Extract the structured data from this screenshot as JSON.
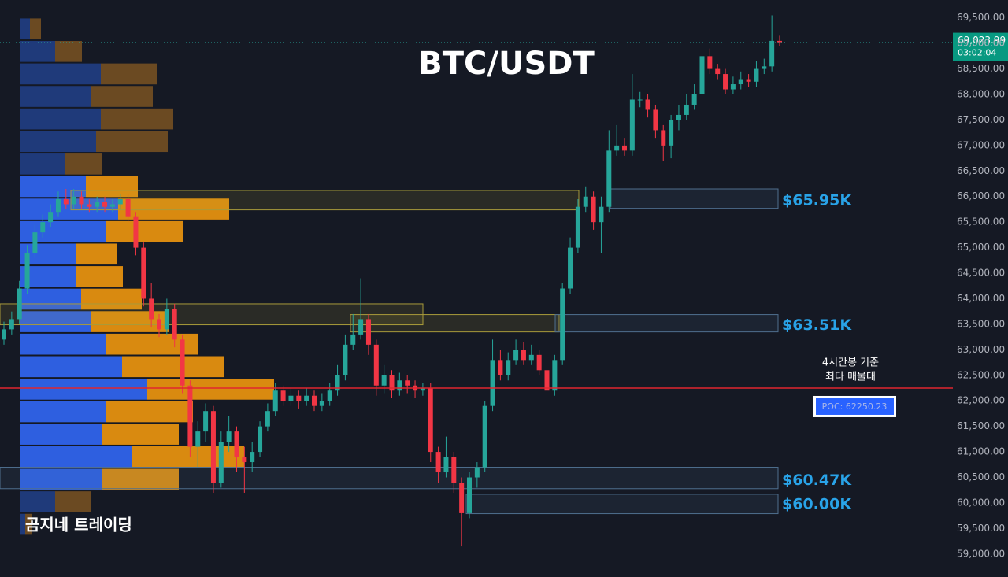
{
  "chart_data": {
    "type": "candlestick",
    "title": "BTC/USDT",
    "watermark": "곰지네 트레이딩",
    "up_color": "#26a69a",
    "down_color": "#f23645",
    "open": [
      63200,
      63400,
      63600,
      64200,
      64900,
      65300,
      65500,
      65700,
      65950,
      65850,
      66000,
      65850,
      65800,
      65900,
      65800,
      65850,
      65950,
      65600,
      65000,
      64000,
      63600,
      63400,
      63800,
      63200,
      62300,
      61100,
      61400,
      61800,
      60400,
      61200,
      61400,
      60900,
      60800,
      61000,
      61500,
      61800,
      62200,
      62000,
      62100,
      62000,
      62100,
      61900,
      62000,
      62200,
      62500,
      63100,
      63300,
      63600,
      63100,
      62300,
      62500,
      62200,
      62400,
      62300,
      62200,
      62250,
      61000,
      60600,
      60900,
      60400,
      59800,
      60500,
      60700,
      61900,
      62800,
      62500,
      62800,
      63000,
      62800,
      62900,
      62600,
      62200,
      62800,
      64200,
      65000,
      65800,
      66000,
      65500,
      65800,
      66900,
      67000,
      66900,
      67900,
      67900,
      67700,
      67300,
      67000,
      67500,
      67600,
      67800,
      68000,
      68750,
      68500,
      68400,
      68100,
      68200,
      68300,
      68250,
      68500,
      68550,
      69050
    ],
    "high": [
      63550,
      63750,
      64350,
      65050,
      65450,
      65650,
      65850,
      66100,
      66150,
      66150,
      66100,
      65950,
      66000,
      66000,
      65950,
      66050,
      66050,
      65700,
      65100,
      64300,
      63700,
      64000,
      63900,
      63300,
      62400,
      61600,
      61950,
      61900,
      61400,
      61700,
      61500,
      61100,
      61200,
      61600,
      61950,
      62350,
      62300,
      62250,
      62200,
      62250,
      62200,
      62150,
      62350,
      62700,
      63300,
      63700,
      64400,
      63700,
      63200,
      62700,
      62600,
      62550,
      62500,
      62400,
      62350,
      62350,
      61100,
      61300,
      61000,
      60500,
      60600,
      60800,
      62000,
      63200,
      63000,
      62950,
      63200,
      63150,
      63100,
      63000,
      62700,
      62900,
      64300,
      65200,
      65950,
      66200,
      66100,
      66000,
      67300,
      67400,
      67150,
      68400,
      68050,
      68000,
      67800,
      67400,
      67600,
      67800,
      68000,
      68200,
      68950,
      68900,
      68600,
      68500,
      68350,
      68450,
      68400,
      68650,
      68700,
      69550,
      69150
    ],
    "low": [
      63100,
      63300,
      63500,
      64100,
      64800,
      65200,
      65400,
      65600,
      65750,
      65750,
      65750,
      65700,
      65700,
      65700,
      65700,
      65750,
      65500,
      64850,
      63850,
      63450,
      63250,
      63300,
      63050,
      62150,
      60900,
      60700,
      61200,
      60200,
      60300,
      61000,
      60600,
      60200,
      60600,
      60900,
      61400,
      61700,
      61900,
      61900,
      61850,
      61900,
      61800,
      61800,
      61900,
      62100,
      62400,
      63000,
      63200,
      62900,
      62100,
      62150,
      62050,
      62100,
      62150,
      62050,
      62100,
      60800,
      60400,
      60500,
      60200,
      59150,
      59700,
      60300,
      60600,
      61800,
      62400,
      62400,
      62700,
      62700,
      62700,
      62500,
      62100,
      62100,
      62700,
      64100,
      64900,
      65700,
      65350,
      64900,
      65700,
      66800,
      66800,
      66800,
      67750,
      67550,
      67150,
      66700,
      66750,
      67300,
      67500,
      67700,
      67900,
      68400,
      68300,
      68000,
      68000,
      68100,
      68150,
      68150,
      68400,
      68450,
      68950
    ],
    "close": [
      63400,
      63600,
      64200,
      64900,
      65300,
      65500,
      65700,
      65950,
      65850,
      66000,
      65850,
      65800,
      65900,
      65800,
      65850,
      65950,
      65600,
      65000,
      64000,
      63600,
      63400,
      63800,
      63200,
      62300,
      61100,
      61400,
      61800,
      60400,
      61200,
      61400,
      60900,
      60800,
      61000,
      61500,
      61800,
      62200,
      62000,
      62100,
      62000,
      62100,
      61900,
      62000,
      62200,
      62500,
      63100,
      63300,
      63600,
      63100,
      62300,
      62500,
      62200,
      62400,
      62300,
      62200,
      62250,
      61000,
      60600,
      60900,
      60400,
      59800,
      60500,
      60700,
      61900,
      62800,
      62500,
      62800,
      63000,
      62800,
      62900,
      62600,
      62200,
      62800,
      64200,
      65000,
      65800,
      66000,
      65500,
      65800,
      66900,
      67000,
      66900,
      67900,
      67900,
      67700,
      67300,
      67000,
      67500,
      67600,
      67800,
      68000,
      68750,
      68500,
      68400,
      68100,
      68200,
      68300,
      68250,
      68500,
      68550,
      69050,
      69023.99
    ],
    "ylim": [
      58550,
      69850
    ],
    "yticks": [
      {
        "value": 59000,
        "label": "59,000.00"
      },
      {
        "value": 59500,
        "label": "59,500.00"
      },
      {
        "value": 60000,
        "label": "60,000.00"
      },
      {
        "value": 60500,
        "label": "60,500.00"
      },
      {
        "value": 61000,
        "label": "61,000.00"
      },
      {
        "value": 61500,
        "label": "61,500.00"
      },
      {
        "value": 62000,
        "label": "62,000.00"
      },
      {
        "value": 62500,
        "label": "62,500.00"
      },
      {
        "value": 63000,
        "label": "63,000.00"
      },
      {
        "value": 63500,
        "label": "63,500.00"
      },
      {
        "value": 64000,
        "label": "64,000.00"
      },
      {
        "value": 64500,
        "label": "64,500.00"
      },
      {
        "value": 65000,
        "label": "65,000.00"
      },
      {
        "value": 65500,
        "label": "65,500.00"
      },
      {
        "value": 66000,
        "label": "66,000.00"
      },
      {
        "value": 66500,
        "label": "66,500.00"
      },
      {
        "value": 67000,
        "label": "67,000.00"
      },
      {
        "value": 67500,
        "label": "67,500.00"
      },
      {
        "value": 68000,
        "label": "68,000.00"
      },
      {
        "value": 68500,
        "label": "68,500.00"
      },
      {
        "value": 69000,
        "label": "69,000.00"
      },
      {
        "value": 69500,
        "label": "69,500.00"
      }
    ],
    "grid": false,
    "volume_profile": {
      "levels": [
        69284,
        68843,
        68402,
        67961,
        67520,
        67079,
        66638,
        66197,
        65756,
        65315,
        64874,
        64433,
        63992,
        63551,
        63110,
        62669,
        62228,
        61787,
        61346,
        60905,
        60464,
        60023,
        59582
      ],
      "buy": [
        12,
        44,
        102,
        90,
        102,
        96,
        57,
        83,
        124,
        109,
        70,
        70,
        77,
        90,
        109,
        129,
        161,
        109,
        103,
        142,
        103,
        44,
        6
      ],
      "sell": [
        14,
        34,
        72,
        78,
        92,
        91,
        47,
        66,
        141,
        98,
        52,
        60,
        77,
        98,
        117,
        130,
        161,
        110,
        98,
        142,
        98,
        46,
        8
      ],
      "value_area": [
        60250,
        66420
      ],
      "buy_color": "#2e5fe0",
      "sell_color": "#d98a10",
      "dim_buy_color": "#1f3a7a",
      "dim_sell_color": "#6b4a22"
    },
    "zones": [
      {
        "label": "$65.95K",
        "value": 65950,
        "top": 66150,
        "bottom": 65770
      },
      {
        "label": "$63.51K",
        "value": 63510,
        "top": 63690,
        "bottom": 63350
      },
      {
        "label": "$60.47K",
        "value": 60470,
        "top": 60700,
        "bottom": 60280
      },
      {
        "label": "$60.00K",
        "value": 60000,
        "top": 60170,
        "bottom": 59790
      }
    ],
    "highlight_boxes": [
      {
        "top": 66120,
        "bottom": 65740
      },
      {
        "top": 63900,
        "bottom": 63490
      },
      {
        "top": 63690,
        "bottom": 63350
      }
    ],
    "poc": {
      "value": 62250.23,
      "label": "POC: 62250.23",
      "note": [
        "4시간봉 기준",
        "최다 매물대"
      ]
    },
    "last_price": {
      "value": 69023.99,
      "label": "69,023.99",
      "countdown": "03:02:04"
    }
  }
}
